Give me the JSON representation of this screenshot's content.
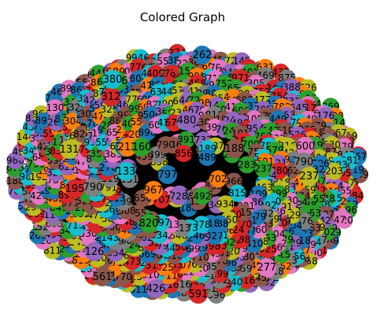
{
  "title": "Colored Graph",
  "colors": {
    "background": "#ffffff",
    "edge": "#000000",
    "label": "#000000",
    "palette": [
      "#1f77b4",
      "#ff7f0e",
      "#2ca02c",
      "#d62728",
      "#9467bd",
      "#8c564b",
      "#e377c2",
      "#7f7f7f",
      "#bcbd22",
      "#17becf"
    ]
  },
  "graph": {
    "layout": "ring",
    "node_count": 1000,
    "visible_node_labels": [
      "262",
      "689",
      "886",
      "312",
      "480",
      "188",
      "600",
      "790",
      "237",
      "133",
      "797",
      "967",
      "820",
      "591",
      "426",
      "561",
      "277",
      "790",
      "131",
      "380",
      "386",
      "212",
      "160",
      "195",
      "126"
    ]
  }
}
